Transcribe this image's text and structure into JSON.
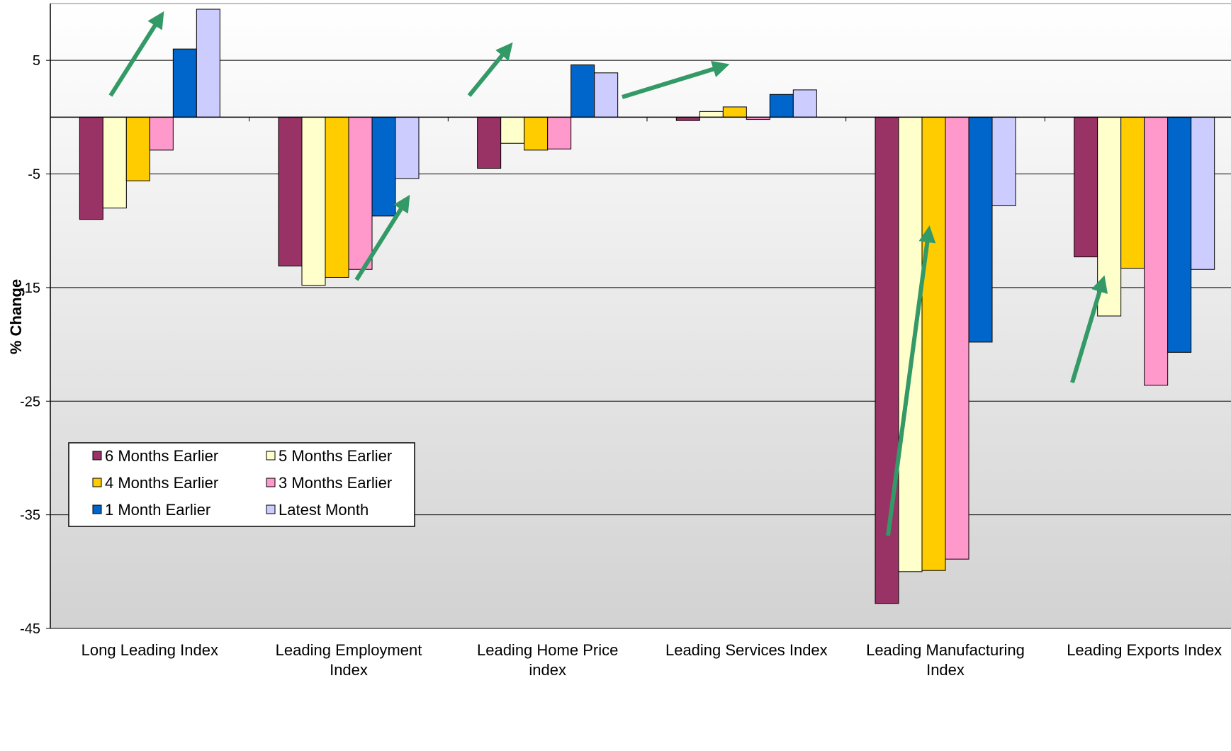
{
  "chart_data": {
    "type": "bar",
    "title": "",
    "xlabel": "",
    "ylabel": "% Change",
    "ylim": [
      -45,
      10
    ],
    "y_ticks": [
      5,
      -5,
      -15,
      -25,
      -35,
      -45
    ],
    "y_tick_labels": [
      "5",
      "-5",
      "-15",
      "-25",
      "-35",
      "-45"
    ],
    "grid": true,
    "legend_position": "bottom-left",
    "categories": [
      "Long Leading Index",
      "Leading Employment Index",
      "Leading Home Price index",
      "Leading Services Index",
      "Leading Manufacturing Index",
      "Leading Exports Index"
    ],
    "category_label_lines": [
      [
        "Long Leading Index"
      ],
      [
        "Leading Employment",
        "Index"
      ],
      [
        "Leading Home Price",
        "index"
      ],
      [
        "Leading Services Index"
      ],
      [
        "Leading Manufacturing",
        "Index"
      ],
      [
        "Leading Exports Index"
      ]
    ],
    "series": [
      {
        "name": "6 Months Earlier",
        "color": "#993366",
        "values": [
          -9.0,
          -13.1,
          -4.5,
          -0.3,
          -42.8,
          -12.3
        ]
      },
      {
        "name": "5 Months Earlier",
        "color": "#FFFFCC",
        "values": [
          -8.0,
          -14.8,
          -2.3,
          0.5,
          -40.0,
          -17.5
        ]
      },
      {
        "name": "4 Months Earlier",
        "color": "#FFCC00",
        "values": [
          -5.6,
          -14.1,
          -2.9,
          0.9,
          -39.9,
          -13.3
        ]
      },
      {
        "name": "3 Months Earlier",
        "color": "#FF99CC",
        "values": [
          -2.9,
          -13.4,
          -2.8,
          -0.2,
          -38.9,
          -23.6
        ]
      },
      {
        "name": "1 Month Earlier",
        "color": "#0066CC",
        "values": [
          6.0,
          -8.7,
          4.6,
          2.0,
          -19.8,
          -20.7
        ]
      },
      {
        "name": "Latest Month",
        "color": "#CCCCFF",
        "values": [
          9.5,
          -5.4,
          3.9,
          2.4,
          -7.8,
          -13.4
        ]
      }
    ],
    "annotations": [
      {
        "type": "arrow",
        "color": "#339966",
        "direction": "up",
        "category": "Long Leading Index"
      },
      {
        "type": "arrow",
        "color": "#339966",
        "direction": "up",
        "category": "Leading Employment Index"
      },
      {
        "type": "arrow",
        "color": "#339966",
        "direction": "up",
        "category": "Leading Home Price index"
      },
      {
        "type": "arrow",
        "color": "#339966",
        "direction": "up",
        "category": "Leading Services Index"
      },
      {
        "type": "arrow",
        "color": "#339966",
        "direction": "up",
        "category": "Leading Manufacturing Index"
      },
      {
        "type": "arrow",
        "color": "#339966",
        "direction": "up",
        "category": "Leading Exports Index"
      }
    ],
    "colors": {
      "plot_background_top": "#FFFFFF",
      "plot_background_bottom": "#D2D2D2",
      "gridline": "#000000",
      "arrow": "#339966"
    }
  }
}
